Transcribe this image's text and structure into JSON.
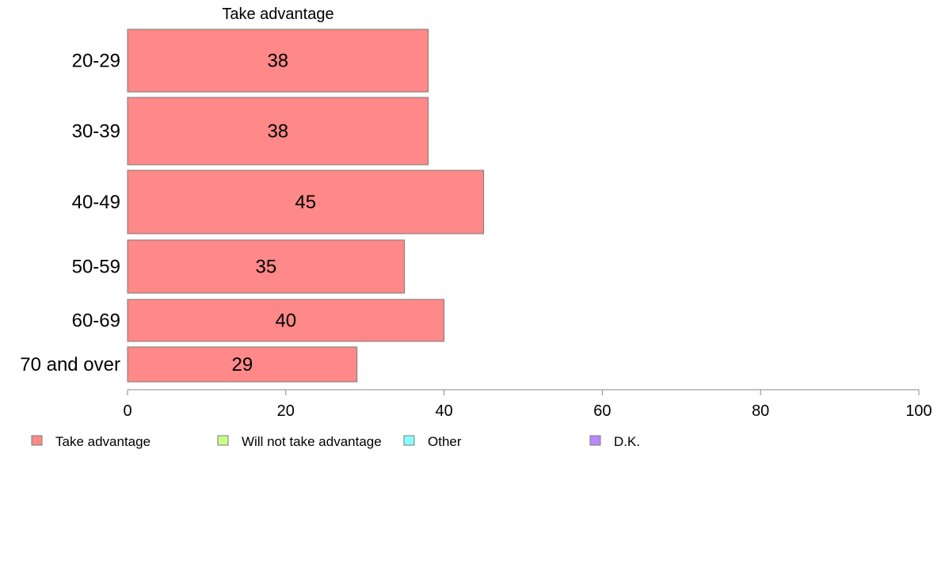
{
  "chart_data": {
    "type": "bar",
    "orientation": "horizontal",
    "series_label": "Take advantage",
    "categories": [
      "20-29",
      "30-39",
      "40-49",
      "50-59",
      "60-69",
      "70 and over"
    ],
    "series": [
      {
        "name": "Take advantage",
        "values": [
          38,
          38,
          45,
          35,
          40,
          29
        ],
        "color": "#ff8888"
      }
    ],
    "value_labels": [
      "38",
      "38",
      "45",
      "35",
      "40",
      "29"
    ],
    "xlim": [
      0,
      100
    ],
    "xticks": [
      0,
      20,
      40,
      60,
      80,
      100
    ],
    "xtick_labels": [
      "0",
      "20",
      "40",
      "60",
      "80",
      "100"
    ],
    "grid": false,
    "legend_position": "bottom",
    "legend": [
      {
        "label": "Take advantage",
        "color": "#ff8888"
      },
      {
        "label": "Will not take advantage",
        "color": "#ccff88"
      },
      {
        "label": "Other",
        "color": "#88ffff"
      },
      {
        "label": "D.K.",
        "color": "#bb88ff"
      }
    ]
  }
}
